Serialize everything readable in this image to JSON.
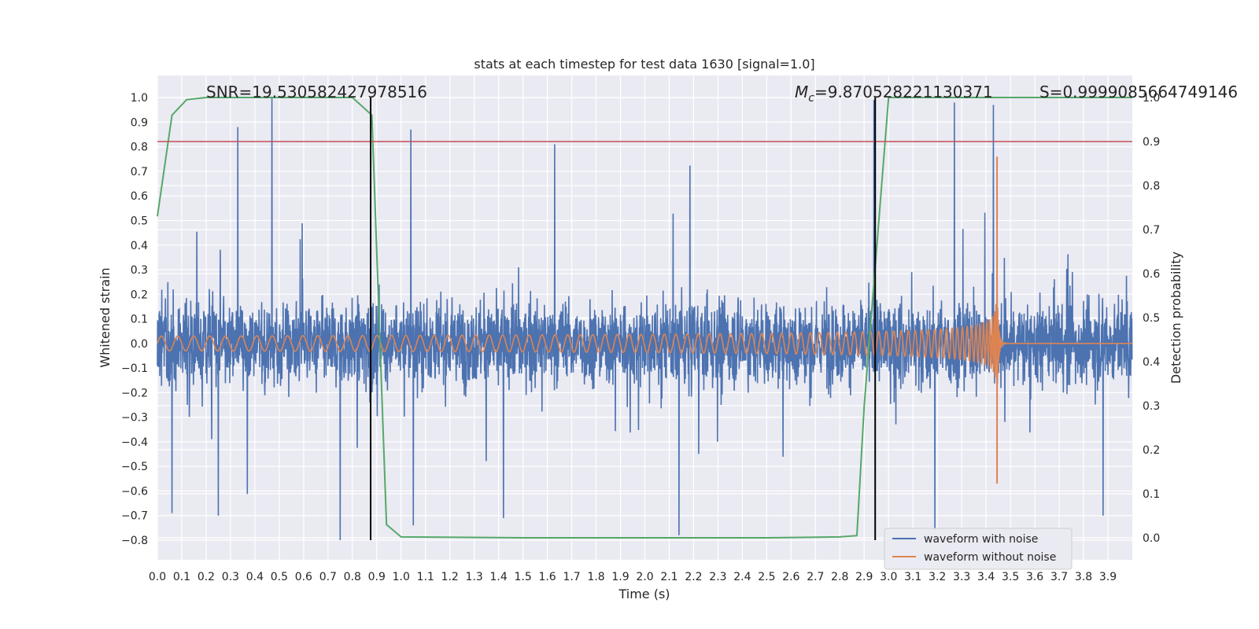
{
  "chart_data": {
    "type": "line",
    "title": "stats at each timestep for test data 1630 [signal=1.0]",
    "xlabel": "Time (s)",
    "ylabel": "Whitened strain",
    "y2label": "Detection probability",
    "xlim": [
      0.0,
      4.0
    ],
    "ylim": [
      -0.88,
      1.09
    ],
    "y2lim": [
      -0.05,
      1.05
    ],
    "xticks": [
      0.0,
      0.1,
      0.2,
      0.3,
      0.4,
      0.5,
      0.6,
      0.7,
      0.8,
      0.9,
      1.0,
      1.1,
      1.2,
      1.3,
      1.4,
      1.5,
      1.6,
      1.7,
      1.8,
      1.9,
      2.0,
      2.1,
      2.2,
      2.3,
      2.4,
      2.5,
      2.6,
      2.7,
      2.8,
      2.9,
      3.0,
      3.1,
      3.2,
      3.3,
      3.4,
      3.5,
      3.6,
      3.7,
      3.8,
      3.9
    ],
    "yticks": [
      1.0,
      0.9,
      0.8,
      0.7,
      0.6,
      0.5,
      0.4,
      0.3,
      0.2,
      0.1,
      0.0,
      -0.1,
      -0.2,
      -0.3,
      -0.4,
      -0.5,
      -0.6,
      -0.7,
      -0.8
    ],
    "y2ticks": [
      1.0,
      0.9,
      0.8,
      0.7,
      0.6,
      0.5,
      0.4,
      0.3,
      0.2,
      0.1,
      0.0
    ],
    "grid": true,
    "legend_position": "bottom-right",
    "annotations": {
      "snr": "SNR=19.530582427978516",
      "mc_symbol": "M",
      "mc_subscript": "c",
      "mc_value": "=9.870528221130371",
      "s": "S=0.9999085664749146"
    },
    "series": [
      {
        "name": "waveform with noise",
        "color": "#4c72b0",
        "kind": "noise",
        "axis": "left",
        "spikes": [
          {
            "x": 0.33,
            "y": 0.88
          },
          {
            "x": 0.47,
            "y": 1.0
          },
          {
            "x": 1.04,
            "y": 0.87
          },
          {
            "x": 1.63,
            "y": 0.81
          },
          {
            "x": 2.94,
            "y": 0.99
          },
          {
            "x": 3.27,
            "y": 0.98
          },
          {
            "x": 3.43,
            "y": 0.97
          },
          {
            "x": 0.06,
            "y": -0.69
          },
          {
            "x": 0.25,
            "y": -0.7
          },
          {
            "x": 0.75,
            "y": -0.8
          },
          {
            "x": 1.05,
            "y": -0.74
          },
          {
            "x": 2.14,
            "y": -0.78
          },
          {
            "x": 3.19,
            "y": -0.76
          },
          {
            "x": 3.88,
            "y": -0.7
          },
          {
            "x": 1.42,
            "y": -0.71
          }
        ]
      },
      {
        "name": "waveform without noise",
        "color": "#dd8452",
        "kind": "chirp",
        "axis": "left",
        "merger_time": 3.445,
        "peak_amplitude": 0.76
      },
      {
        "name": "detection probability",
        "color": "#55a868",
        "kind": "line",
        "axis": "right",
        "x": [
          0.0,
          0.06,
          0.12,
          0.2,
          0.5,
          0.8,
          0.88,
          0.94,
          1.0,
          1.5,
          2.0,
          2.5,
          2.8,
          2.87,
          2.9,
          2.95,
          3.0,
          3.5,
          4.0
        ],
        "y": [
          0.73,
          0.96,
          0.995,
          1.0,
          1.0,
          1.0,
          0.96,
          0.03,
          0.002,
          0.0,
          0.0,
          0.0,
          0.002,
          0.005,
          0.3,
          0.65,
          1.0,
          1.0,
          1.0
        ]
      }
    ],
    "reference_lines": {
      "threshold_right_axis": 0.9,
      "threshold_color": "#c44e52",
      "vertical_lines_x": [
        0.875,
        2.945
      ],
      "vertical_color": "#000000"
    }
  }
}
